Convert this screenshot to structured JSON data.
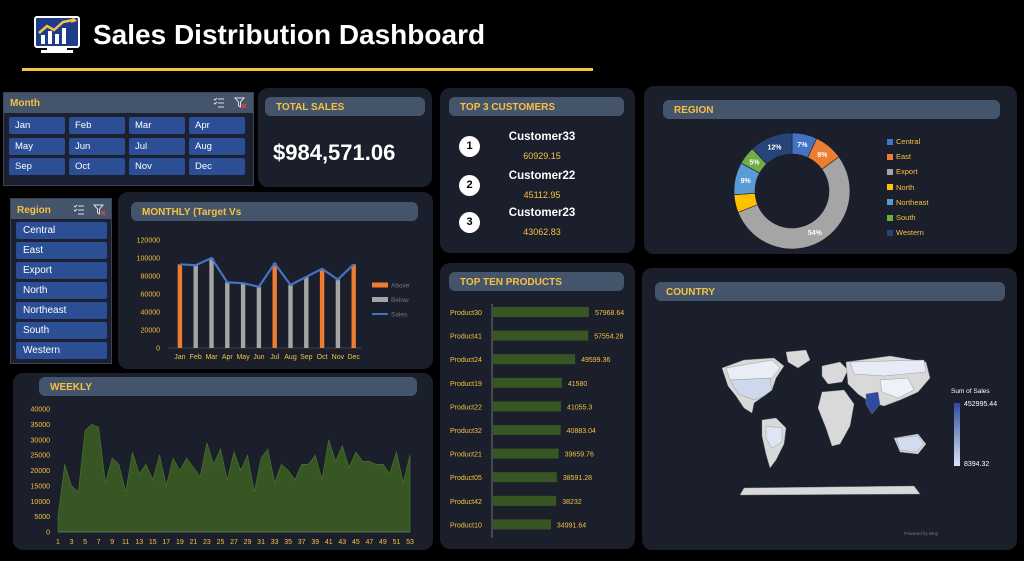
{
  "header": {
    "title": "Sales Distribution Dashboard",
    "logo_icon": "line-chart-monitor-icon"
  },
  "month_slicer": {
    "title": "Month",
    "months": [
      "Jan",
      "Feb",
      "Mar",
      "Apr",
      "May",
      "Jun",
      "Jul",
      "Aug",
      "Sep",
      "Oct",
      "Nov",
      "Dec"
    ]
  },
  "total_sales": {
    "title": "TOTAL SALES",
    "value": "$984,571.06"
  },
  "top_customers": {
    "title": "TOP 3 CUSTOMERS",
    "items": [
      {
        "rank": "1",
        "name": "Customer33",
        "amount": "60929.15"
      },
      {
        "rank": "2",
        "name": "Customer22",
        "amount": "45112.95"
      },
      {
        "rank": "3",
        "name": "Customer23",
        "amount": "43062.83"
      }
    ]
  },
  "region_slicer": {
    "title": "Region",
    "items": [
      "Central",
      "East",
      "Export",
      "North",
      "Northeast",
      "South",
      "Western"
    ]
  },
  "colors": {
    "accent": "#f5c242",
    "background": "#000000",
    "panel": "#1b1f2b",
    "slicer_button": "#2b4e95"
  },
  "chart_data": [
    {
      "id": "monthly",
      "title": "MONTHLY (Target Vs",
      "type": "bar",
      "categories": [
        "Jan",
        "Feb",
        "Mar",
        "Apr",
        "May",
        "Jun",
        "Jul",
        "Aug",
        "Sep",
        "Oct",
        "Nov",
        "Dec"
      ],
      "series": [
        {
          "name": "Above",
          "color": "#ed7d31",
          "values": [
            93000,
            0,
            0,
            0,
            0,
            0,
            94000,
            0,
            0,
            88000,
            0,
            93000
          ]
        },
        {
          "name": "Below",
          "color": "#a5a5a5",
          "values": [
            0,
            92000,
            100000,
            73000,
            72000,
            68000,
            0,
            70000,
            79000,
            0,
            76000,
            0
          ]
        },
        {
          "name": "Sales",
          "type": "line",
          "color": "#4472c4",
          "values": [
            93000,
            92000,
            100000,
            73000,
            72000,
            68000,
            94000,
            70000,
            79000,
            88000,
            76000,
            93000
          ]
        }
      ],
      "yticks": [
        "0",
        "20000",
        "40000",
        "60000",
        "80000",
        "100000",
        "120000"
      ],
      "ylim": [
        0,
        120000
      ]
    },
    {
      "id": "region",
      "title": "REGION",
      "type": "pie",
      "labels": [
        "Central",
        "East",
        "Export",
        "North",
        "Northeast",
        "South",
        "Western"
      ],
      "colors": [
        "#4472c4",
        "#ed7d31",
        "#a5a5a5",
        "#ffc000",
        "#5b9bd5",
        "#70ad47",
        "#264478"
      ],
      "values": [
        7,
        8,
        54,
        5,
        9,
        5,
        12
      ],
      "value_labels": [
        "7%",
        "8%",
        "54%",
        "",
        "9%",
        "5%",
        "12%"
      ]
    },
    {
      "id": "top_products",
      "title": "TOP TEN PRODUCTS",
      "type": "bar",
      "orientation": "horizontal",
      "categories": [
        "Product30",
        "Product41",
        "Product24",
        "Product19",
        "Product22",
        "Product32",
        "Product21",
        "Product05",
        "Product42",
        "Product10"
      ],
      "values": [
        57968.64,
        57554.28,
        49599.36,
        41580,
        41055.3,
        40883.04,
        39659.76,
        38591.28,
        38232,
        34991.64
      ],
      "value_labels": [
        "57968.64",
        "57554.28",
        "49599.36",
        "41580",
        "41055.3",
        "40883.04",
        "39659.76",
        "38591.28",
        "38232",
        "34991.64"
      ],
      "color": "#375623"
    },
    {
      "id": "weekly",
      "title": "WEEKLY",
      "type": "area",
      "x": [
        1,
        2,
        3,
        4,
        5,
        6,
        7,
        8,
        9,
        10,
        11,
        12,
        13,
        14,
        15,
        16,
        17,
        18,
        19,
        20,
        21,
        22,
        23,
        24,
        25,
        26,
        27,
        28,
        29,
        30,
        31,
        32,
        33,
        34,
        35,
        36,
        37,
        38,
        39,
        40,
        41,
        42,
        43,
        44,
        45,
        46,
        47,
        48,
        49,
        50,
        51,
        52,
        53
      ],
      "xticks": [
        "1",
        "3",
        "5",
        "7",
        "9",
        "11",
        "13",
        "15",
        "17",
        "19",
        "21",
        "23",
        "25",
        "27",
        "29",
        "31",
        "33",
        "35",
        "37",
        "39",
        "41",
        "43",
        "45",
        "47",
        "49",
        "51",
        "53"
      ],
      "values": [
        5000,
        22000,
        15000,
        13000,
        33000,
        35000,
        34000,
        16000,
        24000,
        22000,
        13000,
        26000,
        19000,
        22000,
        17000,
        25000,
        15000,
        24000,
        20000,
        24000,
        21000,
        18000,
        29000,
        22000,
        27000,
        17000,
        26000,
        20000,
        25000,
        13000,
        24000,
        27000,
        16000,
        22000,
        20000,
        17000,
        22000,
        22000,
        25000,
        17000,
        30000,
        23000,
        28000,
        21000,
        26000,
        23000,
        23000,
        22000,
        22000,
        19000,
        26000,
        16000,
        25000
      ],
      "yticks": [
        "0",
        "5000",
        "10000",
        "15000",
        "20000",
        "25000",
        "30000",
        "35000",
        "40000"
      ],
      "ylim": [
        0,
        40000
      ],
      "color": "#375623"
    },
    {
      "id": "country",
      "title": "COUNTRY",
      "type": "heatmap",
      "legend_title": "Sum of Sales",
      "legend_max": "452995.44",
      "legend_min": "8394.32",
      "attribution": "Powered by Bing"
    }
  ]
}
